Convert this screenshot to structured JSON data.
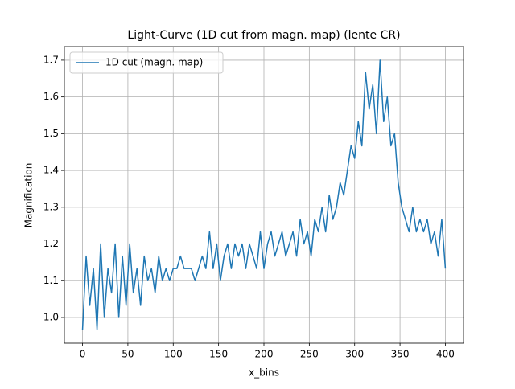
{
  "chart_data": {
    "type": "line",
    "title": "Light-Curve (1D cut from magn. map) (lente CR)",
    "xlabel": "x_bins",
    "ylabel": "Magnification",
    "x": [
      0,
      4,
      8,
      12,
      16,
      20,
      24,
      28,
      32,
      36,
      40,
      44,
      48,
      52,
      56,
      60,
      64,
      68,
      72,
      76,
      80,
      84,
      88,
      92,
      96,
      100,
      104,
      108,
      112,
      116,
      120,
      124,
      128,
      132,
      136,
      140,
      144,
      148,
      152,
      156,
      160,
      164,
      168,
      172,
      176,
      180,
      184,
      188,
      192,
      196,
      200,
      204,
      208,
      212,
      216,
      220,
      224,
      228,
      232,
      236,
      240,
      244,
      248,
      252,
      256,
      260,
      264,
      268,
      272,
      276,
      280,
      284,
      288,
      292,
      296,
      300,
      304,
      308,
      312,
      316,
      320,
      324,
      328,
      332,
      336,
      340,
      344,
      348,
      352,
      356,
      360,
      364,
      368,
      372,
      376,
      380,
      384,
      388,
      392,
      396,
      400
    ],
    "series": [
      {
        "name": "1D cut (magn. map)",
        "color": "#1f77b4",
        "values": [
          0.967,
          1.167,
          1.033,
          1.133,
          0.967,
          1.2,
          1.0,
          1.133,
          1.067,
          1.2,
          1.0,
          1.167,
          1.033,
          1.2,
          1.067,
          1.133,
          1.033,
          1.167,
          1.1,
          1.133,
          1.067,
          1.167,
          1.1,
          1.133,
          1.1,
          1.133,
          1.133,
          1.167,
          1.133,
          1.133,
          1.133,
          1.1,
          1.133,
          1.167,
          1.133,
          1.233,
          1.133,
          1.2,
          1.1,
          1.167,
          1.2,
          1.133,
          1.2,
          1.167,
          1.2,
          1.133,
          1.2,
          1.167,
          1.133,
          1.233,
          1.133,
          1.2,
          1.233,
          1.167,
          1.2,
          1.233,
          1.167,
          1.2,
          1.233,
          1.167,
          1.267,
          1.2,
          1.233,
          1.167,
          1.267,
          1.233,
          1.3,
          1.233,
          1.333,
          1.267,
          1.3,
          1.367,
          1.333,
          1.4,
          1.467,
          1.433,
          1.533,
          1.467,
          1.667,
          1.567,
          1.633,
          1.5,
          1.7,
          1.533,
          1.6,
          1.467,
          1.5,
          1.367,
          1.3,
          1.267,
          1.233,
          1.3,
          1.233,
          1.267,
          1.233,
          1.267,
          1.2,
          1.233,
          1.167,
          1.267,
          1.133
        ]
      }
    ],
    "xlim": [
      -20,
      420
    ],
    "ylim": [
      0.93,
      1.737
    ],
    "xticks": [
      0,
      50,
      100,
      150,
      200,
      250,
      300,
      350,
      400
    ],
    "yticks": [
      {
        "value": 1,
        "label": "1.0"
      },
      1.1,
      1.2,
      1.3,
      1.4,
      1.5,
      1.6,
      1.7
    ],
    "grid": true,
    "legend": "upper-left"
  }
}
